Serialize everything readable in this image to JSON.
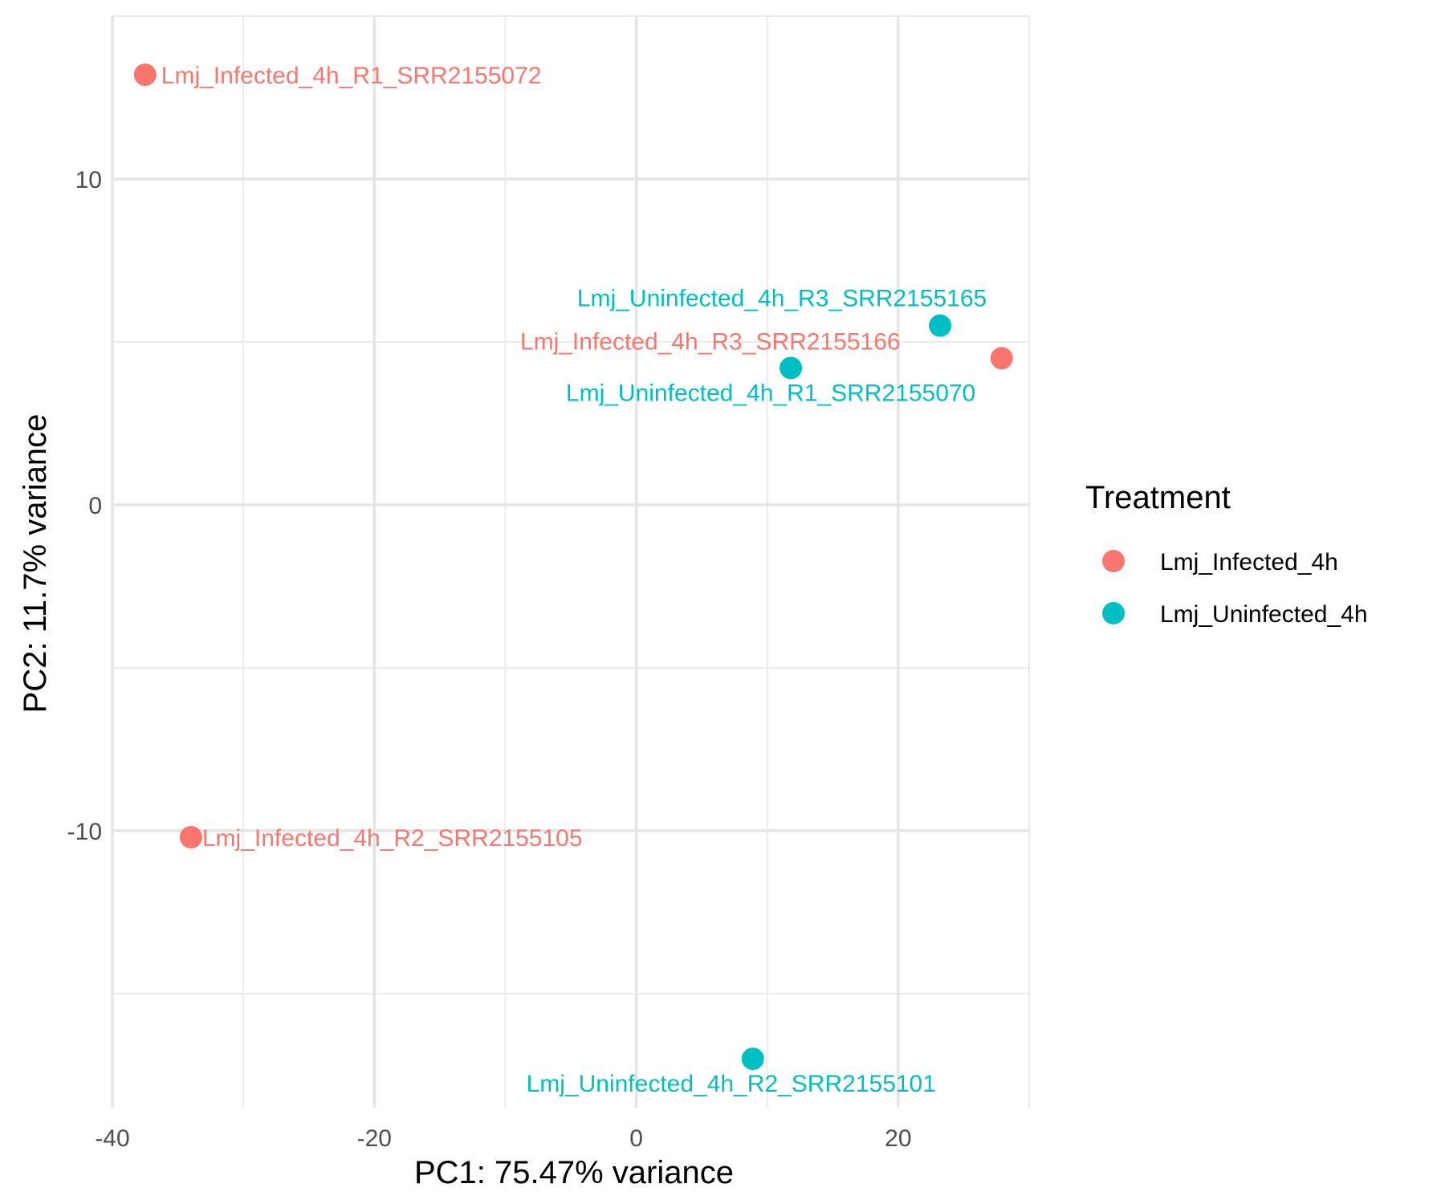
{
  "chart_data": {
    "type": "scatter",
    "title": "",
    "xlabel": "PC1: 75.47% variance",
    "ylabel": "PC2: 11.7% variance",
    "xlim": [
      -40,
      30
    ],
    "ylim": [
      -18.5,
      15
    ],
    "x_ticks": [
      -40,
      -20,
      0,
      20
    ],
    "y_ticks": [
      -10,
      0,
      10
    ],
    "grid": true,
    "legend": {
      "title": "Treatment",
      "placement": "right",
      "entries": [
        {
          "name": "Lmj_Infected_4h",
          "color": "#F8766D"
        },
        {
          "name": "Lmj_Uninfected_4h",
          "color": "#00BFC4"
        }
      ]
    },
    "series": [
      {
        "name": "Lmj_Infected_4h",
        "color": "#F8766D",
        "points": [
          {
            "label": "Lmj_Infected_4h_R1_SRR2155072",
            "x": -37.5,
            "y": 13.2
          },
          {
            "label": "Lmj_Infected_4h_R3_SRR2155166",
            "x": 27.9,
            "y": 4.5
          },
          {
            "label": "Lmj_Infected_4h_R2_SRR2155105",
            "x": -34.0,
            "y": -10.2
          }
        ]
      },
      {
        "name": "Lmj_Uninfected_4h",
        "color": "#00BFC4",
        "points": [
          {
            "label": "Lmj_Uninfected_4h_R3_SRR2155165",
            "x": 23.2,
            "y": 5.5
          },
          {
            "label": "Lmj_Uninfected_4h_R1_SRR2155070",
            "x": 11.8,
            "y": 4.2
          },
          {
            "label": "Lmj_Uninfected_4h_R2_SRR2155101",
            "x": 8.9,
            "y": -17.0
          }
        ]
      }
    ]
  }
}
